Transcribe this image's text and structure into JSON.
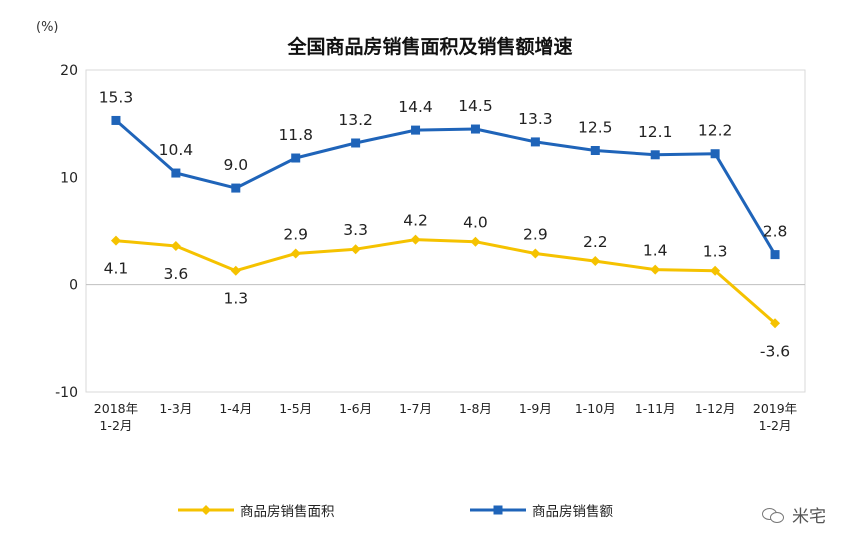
{
  "chart_data": {
    "type": "line",
    "title": "全国商品房销售面积及销售额增速",
    "unit_label": "(%)",
    "ylim": [
      -10,
      20
    ],
    "yticks": [
      "20",
      "10",
      "0",
      "-10"
    ],
    "categories": [
      [
        "2018年",
        "1-2月"
      ],
      [
        "1-3月"
      ],
      [
        "1-4月"
      ],
      [
        "1-5月"
      ],
      [
        "1-6月"
      ],
      [
        "1-7月"
      ],
      [
        "1-8月"
      ],
      [
        "1-9月"
      ],
      [
        "1-10月"
      ],
      [
        "1-11月"
      ],
      [
        "1-12月"
      ],
      [
        "2019年",
        "1-2月"
      ]
    ],
    "series": [
      {
        "name": "商品房销售面积",
        "color": "#F5C200",
        "marker": "diamond",
        "values": [
          4.1,
          3.6,
          1.3,
          2.9,
          3.3,
          4.2,
          4.0,
          2.9,
          2.2,
          1.4,
          1.3,
          -3.6
        ],
        "labels": [
          "4.1",
          "3.6",
          "1.3",
          "2.9",
          "3.3",
          "4.2",
          "4.0",
          "2.9",
          "2.2",
          "1.4",
          "1.3",
          "-3.6"
        ]
      },
      {
        "name": "商品房销售额",
        "color": "#1F64B9",
        "marker": "square",
        "values": [
          15.3,
          10.4,
          9.0,
          11.8,
          13.2,
          14.4,
          14.5,
          13.3,
          12.5,
          12.1,
          12.2,
          2.8
        ],
        "labels": [
          "15.3",
          "10.4",
          "9.0",
          "11.8",
          "13.2",
          "14.4",
          "14.5",
          "13.3",
          "12.5",
          "12.1",
          "12.2",
          "2.8"
        ]
      }
    ],
    "grid": false,
    "legend_position": "bottom"
  },
  "watermark": {
    "text": "米宅",
    "icon": "wechat-icon"
  }
}
